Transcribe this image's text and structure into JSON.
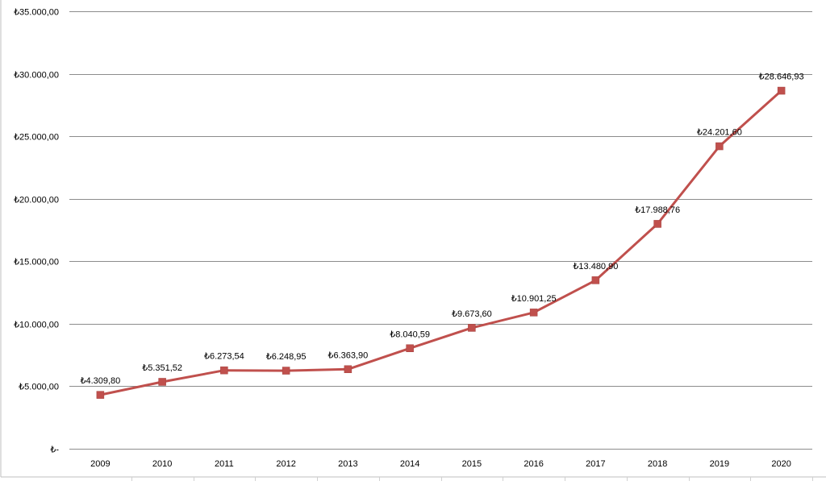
{
  "chart_data": {
    "type": "line",
    "title": "",
    "xlabel": "",
    "ylabel": "",
    "categories": [
      "2009",
      "2010",
      "2011",
      "2012",
      "2013",
      "2014",
      "2015",
      "2016",
      "2017",
      "2018",
      "2019",
      "2020"
    ],
    "series": [
      {
        "values": [
          4309.8,
          5351.52,
          6273.54,
          6248.95,
          6363.9,
          8040.59,
          9673.6,
          10901.25,
          13480.9,
          17988.76,
          24201.6,
          28646.93
        ],
        "labels": [
          "₺4.309,80",
          "₺5.351,52",
          "₺6.273,54",
          "₺6.248,95",
          "₺6.363,90",
          "₺8.040,59",
          "₺9.673,60",
          "₺10.901,25",
          "₺13.480,90",
          "₺17.988,76",
          "₺24.201,60",
          "₺28.646,93"
        ],
        "color": "#C0504D",
        "marker": "square"
      }
    ],
    "y_ticks": [
      0,
      5000,
      10000,
      15000,
      20000,
      25000,
      30000,
      35000
    ],
    "y_tick_labels": [
      "₺-",
      "₺5.000,00",
      "₺10.000,00",
      "₺15.000,00",
      "₺20.000,00",
      "₺25.000,00",
      "₺30.000,00",
      "₺35.000,00"
    ],
    "ylim": [
      0,
      35000
    ],
    "grid": "horizontal",
    "legend": "none"
  }
}
